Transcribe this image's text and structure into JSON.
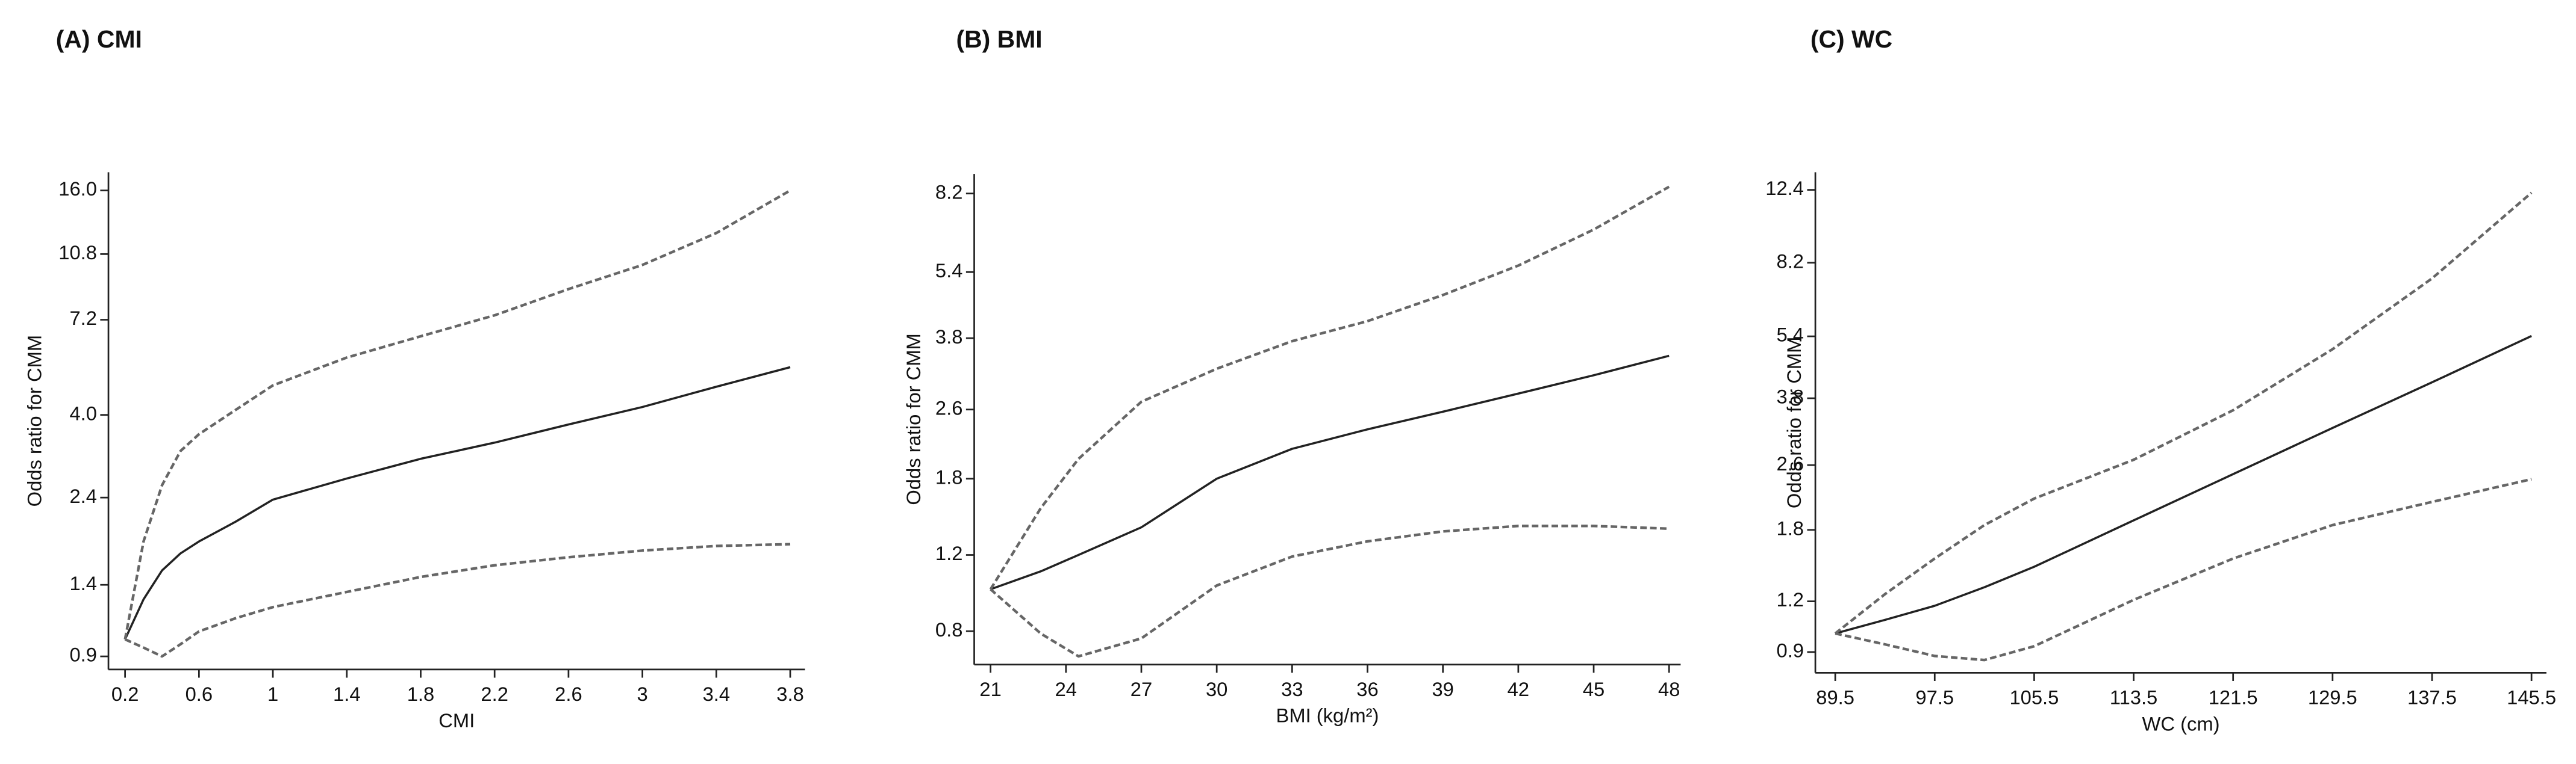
{
  "chart_data": [
    {
      "type": "line",
      "title": "(A) CMI",
      "x_label": "CMI",
      "y_label": "Odds ratio for CMM",
      "log_y": true,
      "x": [
        0.2,
        0.3,
        0.4,
        0.5,
        0.6,
        0.8,
        1.0,
        1.4,
        1.8,
        2.2,
        2.6,
        3.0,
        3.4,
        3.8
      ],
      "series": [
        {
          "color": "#222222",
          "style": "solid",
          "values": [
            1.0,
            1.28,
            1.53,
            1.7,
            1.83,
            2.07,
            2.37,
            2.7,
            3.05,
            3.37,
            3.77,
            4.2,
            4.76,
            5.37
          ]
        },
        {
          "color": "#666666",
          "style": "dashed",
          "values": [
            1.0,
            1.83,
            2.59,
            3.2,
            3.55,
            4.13,
            4.8,
            5.7,
            6.5,
            7.4,
            8.7,
            10.1,
            12.3,
            16.0
          ]
        },
        {
          "color": "#666666",
          "style": "dashed",
          "values": [
            1.0,
            0.95,
            0.9,
            0.97,
            1.05,
            1.14,
            1.22,
            1.34,
            1.47,
            1.58,
            1.66,
            1.73,
            1.78,
            1.8
          ]
        }
      ],
      "xlim": [
        0.11,
        3.88
      ],
      "ylim": [
        0.83,
        17.9
      ],
      "xticks": [
        0.2,
        0.6,
        1,
        1.4,
        1.8,
        2.2,
        2.6,
        3,
        3.4,
        3.8
      ],
      "yticks": [
        0.9,
        1.4,
        2.4,
        {
          "value": 4,
          "label": "4.0"
        },
        7.2,
        10.8,
        {
          "value": 16,
          "label": "16.0"
        }
      ]
    },
    {
      "type": "line",
      "title": "(B) BMI",
      "x_label": "BMI (kg/m²)",
      "y_label": "Odds ratio for CMM",
      "log_y": true,
      "x": [
        21,
        23,
        24.5,
        27,
        30,
        33,
        36,
        39,
        42,
        45,
        48
      ],
      "series": [
        {
          "color": "#222222",
          "style": "solid",
          "values": [
            1.0,
            1.1,
            1.2,
            1.39,
            1.8,
            2.11,
            2.34,
            2.57,
            2.83,
            3.12,
            3.46
          ]
        },
        {
          "color": "#666666",
          "style": "dashed",
          "values": [
            1.0,
            1.54,
            2.0,
            2.71,
            3.23,
            3.74,
            4.16,
            4.78,
            5.59,
            6.77,
            8.5
          ]
        },
        {
          "color": "#666666",
          "style": "dashed",
          "values": [
            1.0,
            0.79,
            0.7,
            0.77,
            1.02,
            1.19,
            1.29,
            1.36,
            1.4,
            1.4,
            1.38
          ]
        }
      ],
      "xlim": [
        20.35,
        48.46
      ],
      "ylim": [
        0.67,
        9.1
      ],
      "xticks": [
        21,
        24,
        27,
        30,
        33,
        36,
        39,
        42,
        45,
        48
      ],
      "yticks": [
        0.8,
        1.2,
        1.8,
        2.6,
        3.8,
        5.4,
        8.2
      ]
    },
    {
      "type": "line",
      "title": "(C) WC",
      "x_label": "WC (cm)",
      "y_label": "Odds ratio for CMM",
      "log_y": true,
      "x": [
        89.5,
        93.5,
        97.5,
        101.5,
        105.5,
        113.5,
        121.5,
        129.5,
        137.5,
        145.5
      ],
      "series": [
        {
          "color": "#222222",
          "style": "solid",
          "values": [
            1.0,
            1.08,
            1.17,
            1.3,
            1.46,
            1.9,
            2.47,
            3.21,
            4.16,
            5.41
          ]
        },
        {
          "color": "#666666",
          "style": "dashed",
          "values": [
            1.0,
            1.25,
            1.53,
            1.85,
            2.15,
            2.68,
            3.55,
            5.02,
            7.5,
            12.2
          ]
        },
        {
          "color": "#666666",
          "style": "dashed",
          "values": [
            1.0,
            0.94,
            0.88,
            0.86,
            0.93,
            1.21,
            1.53,
            1.85,
            2.11,
            2.4
          ]
        }
      ],
      "xlim": [
        87.9,
        146.7
      ],
      "ylim": [
        0.8,
        13.7
      ],
      "xticks": [
        89.5,
        97.5,
        105.5,
        113.5,
        121.5,
        129.5,
        137.5,
        145.5
      ],
      "yticks": [
        0.9,
        1.2,
        1.8,
        2.6,
        3.8,
        5.4,
        8.2,
        12.4
      ]
    }
  ]
}
